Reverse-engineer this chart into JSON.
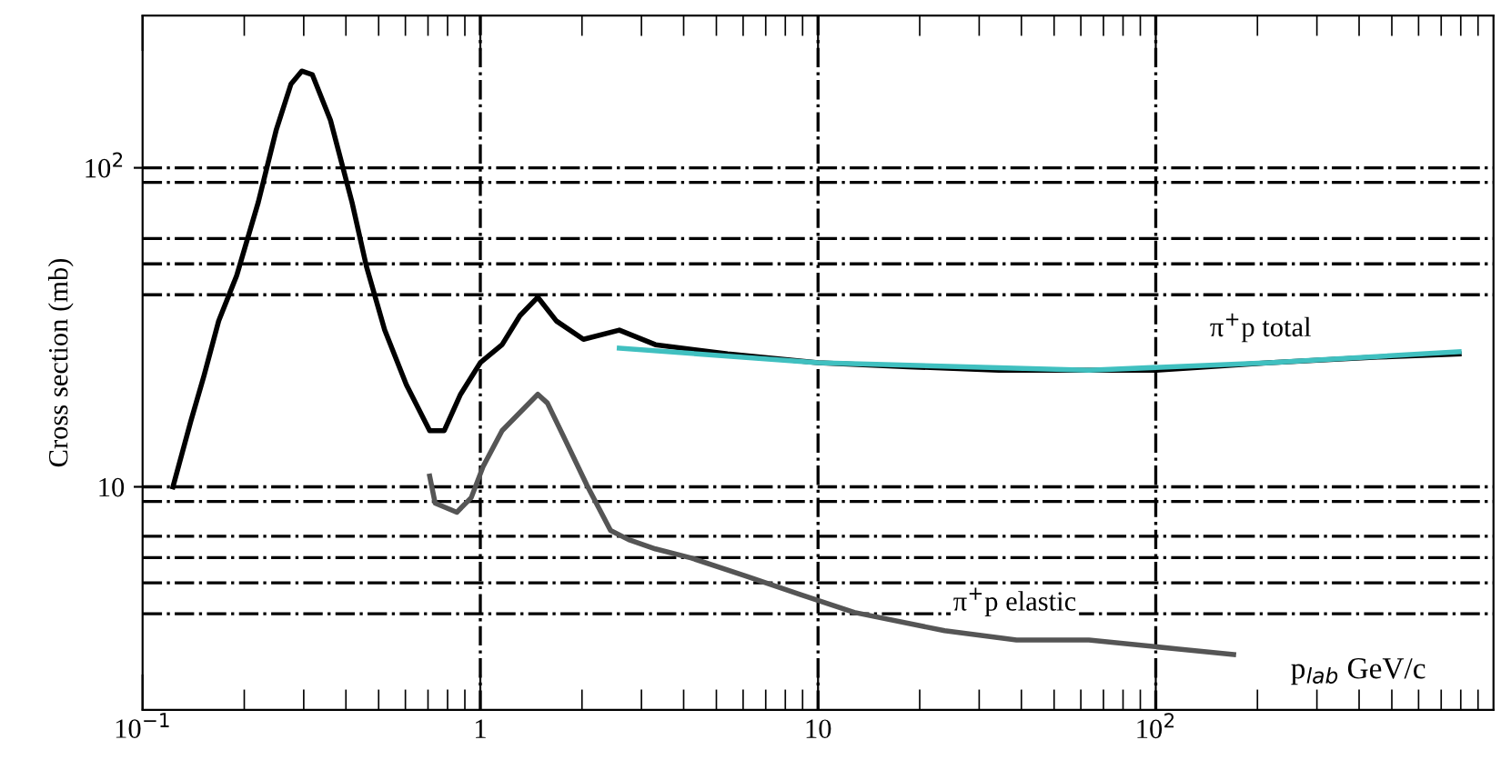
{
  "chart_data": {
    "type": "line",
    "xlabel": "p$_{lab}$ GeV/c",
    "ylabel": "Cross section (mb)",
    "log": "xy",
    "xlim": [
      0.1,
      1000
    ],
    "ylim": [
      2,
      300
    ],
    "xticks": [
      {
        "value": 0.1,
        "label": "10$^{−1}$"
      },
      1,
      10,
      {
        "value": 100,
        "label": "10$^{2}$"
      }
    ],
    "yticks": [
      10,
      {
        "value": 100,
        "label": "10$^{2}$"
      }
    ],
    "marker": "none",
    "line_style": "solid",
    "grid": false,
    "legend": false,
    "series": [
      {
        "color": "#000000",
        "x": [
          0.123,
          0.139,
          0.152,
          0.168,
          0.19,
          0.22,
          0.249,
          0.275,
          0.296,
          0.318,
          0.36,
          0.417,
          0.46,
          0.521,
          0.604,
          0.708,
          0.782,
          0.874,
          1.0,
          1.16,
          1.31,
          1.48,
          1.68,
          2.02,
          2.58,
          3.3,
          5.4,
          10,
          18.5,
          34.3,
          63.4,
          100,
          217,
          455,
          791
        ],
        "values": [
          10,
          16.1,
          22.3,
          33.1,
          46.0,
          77.9,
          132,
          183,
          201,
          196,
          141,
          77.9,
          49.1,
          31.0,
          20.9,
          15.0,
          15.0,
          19.5,
          24.5,
          27.9,
          34.4,
          39.3,
          33.1,
          29.0,
          31.0,
          27.9,
          26.1,
          24.5,
          23.8,
          23.2,
          23.2,
          23.2,
          24.5,
          25.5,
          26.1
        ]
      },
      {
        "color": "#555555",
        "x": [
          0.708,
          0.735,
          0.852,
          0.94,
          1.02,
          1.16,
          1.31,
          1.48,
          1.58,
          1.78,
          2.07,
          2.43,
          2.75,
          3.3,
          4.22,
          6.11,
          8.84,
          12.8,
          23.7,
          38.7,
          63.4,
          117,
          170
        ],
        "values": [
          10.8,
          8.89,
          8.32,
          9.25,
          11.6,
          15.0,
          17.1,
          19.5,
          18.3,
          14.1,
          10.1,
          7.3,
          6.83,
          6.39,
          5.98,
          5.25,
          4.6,
          4.04,
          3.54,
          3.31,
          3.31,
          3.1,
          2.98
        ]
      },
      {
        "color": "#40c0c0",
        "x": [
          2.58,
          10,
          63.4,
          217,
          791
        ],
        "values": [
          27.2,
          24.5,
          23.2,
          24.5,
          26.5
        ]
      }
    ],
    "ref_lines": [
      {
        "axis": "x",
        "value": 1,
        "line_style": "dashdot"
      },
      {
        "axis": "x",
        "value": 10,
        "line_style": "dashdot"
      },
      {
        "axis": "x",
        "value": 100,
        "line_style": "dashdot"
      },
      {
        "axis": "y",
        "value": 100,
        "line_style": "dashdot"
      },
      {
        "axis": "y",
        "value": 90,
        "line_style": "dashdot"
      },
      {
        "axis": "y",
        "value": 60,
        "line_style": "dashdot"
      },
      {
        "axis": "y",
        "value": 50,
        "line_style": "dashdot"
      },
      {
        "axis": "y",
        "value": 40,
        "line_style": "dashdot"
      },
      {
        "axis": "y",
        "value": 10,
        "line_style": "dashdot"
      },
      {
        "axis": "y",
        "value": 9,
        "line_style": "dashdot"
      },
      {
        "axis": "y",
        "value": 7,
        "line_style": "dashdot"
      },
      {
        "axis": "y",
        "value": 6,
        "line_style": "dashdot"
      },
      {
        "axis": "y",
        "value": 5,
        "line_style": "dashdot"
      },
      {
        "axis": "y",
        "value": 4,
        "line_style": "dashdot"
      }
    ],
    "annotations": [
      "π$^{+}$p total",
      "π$^{+}$p elastic"
    ]
  }
}
